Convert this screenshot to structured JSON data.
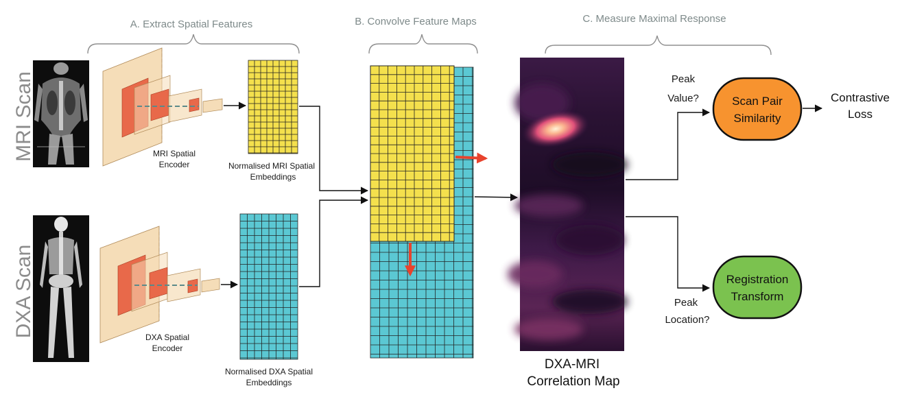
{
  "stages": {
    "a": "A. Extract Spatial Features",
    "b": "B. Convolve Feature Maps",
    "c": "C. Measure Maximal Response"
  },
  "scans": {
    "mri": "MRI Scan",
    "dxa": "DXA Scan"
  },
  "encoders": {
    "mri_line1": "MRI Spatial",
    "mri_line2": "Encoder",
    "dxa_line1": "DXA Spatial",
    "dxa_line2": "Encoder"
  },
  "embeddings": {
    "mri_line1": "Normalised MRI Spatial",
    "mri_line2": "Embeddings",
    "dxa_line1": "Normalised DXA Spatial",
    "dxa_line2": "Embeddings"
  },
  "correlation_map": {
    "line1": "DXA-MRI",
    "line2": "Correlation Map"
  },
  "branches": {
    "peak_value_line1": "Peak",
    "peak_value_line2": "Value?",
    "peak_location_line1": "Peak",
    "peak_location_line2": "Location?"
  },
  "outputs": {
    "similarity_line1": "Scan Pair",
    "similarity_line2": "Similarity",
    "registration_line1": "Registration",
    "registration_line2": "Transform",
    "loss_line1": "Contrastive",
    "loss_line2": "Loss"
  },
  "colors": {
    "mri_embedding": "#f4e04d",
    "dxa_embedding": "#5bc8d3",
    "similarity_node": "#f7932f",
    "registration_node": "#7bc24f",
    "shift_arrow": "#e8432d",
    "encoder_layer": "#f5ddb8",
    "encoder_kernel": "#e8694a"
  }
}
